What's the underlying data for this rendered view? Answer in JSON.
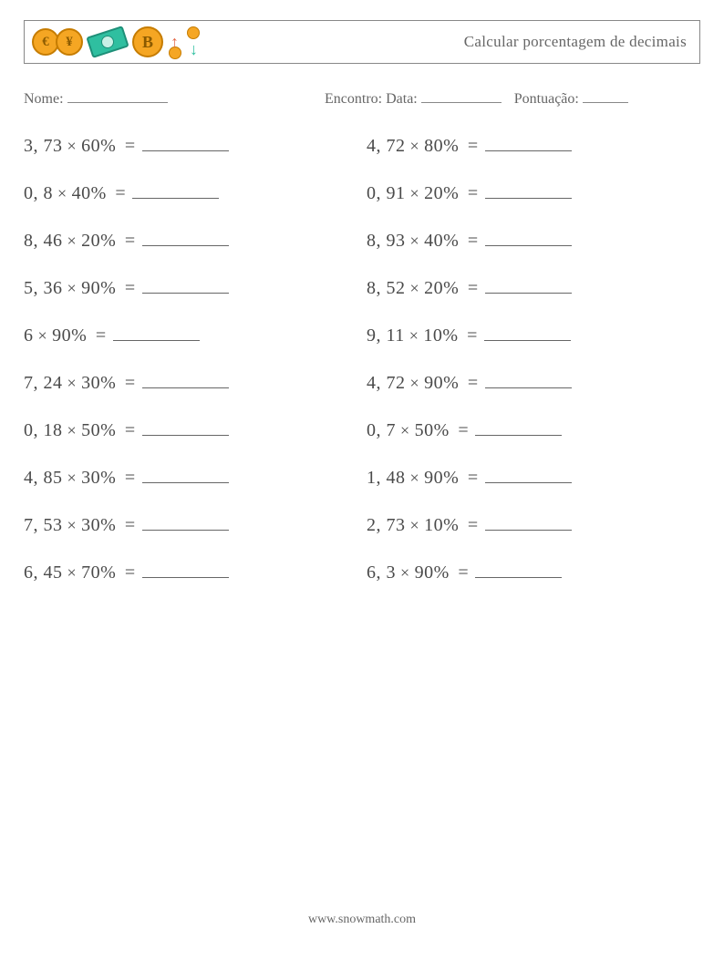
{
  "colors": {
    "text": "#555555",
    "border": "#888888",
    "coin_gold_fill": "#f5a623",
    "coin_gold_stroke": "#c67c00",
    "coin_gold_text": "#8a5a00",
    "bill_fill": "#2fbfa0",
    "bill_stroke": "#1e8f78",
    "bill_inner": "#c9f0e6",
    "arrow_up": "#e46a4a",
    "arrow_down": "#2fbfa0",
    "mini_coin": "#f5a623",
    "mini_coin_stroke": "#c67c00"
  },
  "header": {
    "title": "Calcular porcentagem de decimais",
    "icons": [
      "euro-coin",
      "yen-coin",
      "dollar-bill",
      "bitcoin-coin",
      "exchange-arrows"
    ],
    "coin_symbols": {
      "euro-coin": "€",
      "yen-coin": "¥",
      "bitcoin-coin": "B"
    }
  },
  "info": {
    "name_label": "Nome:",
    "name_blank_width": 110,
    "encounter_label": "Encontro: Data:",
    "date_blank_width": 88,
    "score_label": "Pontuação:",
    "score_blank_width": 50
  },
  "problems": {
    "left": [
      {
        "a": "3, 73",
        "b": "60%"
      },
      {
        "a": "0, 8",
        "b": "40%"
      },
      {
        "a": "8, 46",
        "b": "20%"
      },
      {
        "a": "5, 36",
        "b": "90%"
      },
      {
        "a": "6",
        "b": "90%"
      },
      {
        "a": "7, 24",
        "b": "30%"
      },
      {
        "a": "0, 18",
        "b": "50%"
      },
      {
        "a": "4, 85",
        "b": "30%"
      },
      {
        "a": "7, 53",
        "b": "30%"
      },
      {
        "a": "6, 45",
        "b": "70%"
      }
    ],
    "right": [
      {
        "a": "4, 72",
        "b": "80%"
      },
      {
        "a": "0, 91",
        "b": "20%"
      },
      {
        "a": "8, 93",
        "b": "40%"
      },
      {
        "a": "8, 52",
        "b": "20%"
      },
      {
        "a": "9, 11",
        "b": "10%"
      },
      {
        "a": "4, 72",
        "b": "90%"
      },
      {
        "a": "0, 7",
        "b": "50%"
      },
      {
        "a": "1, 48",
        "b": "90%"
      },
      {
        "a": "2, 73",
        "b": "10%"
      },
      {
        "a": "6, 3",
        "b": "90%"
      }
    ]
  },
  "footer": {
    "text": "www.snowmath.com"
  }
}
